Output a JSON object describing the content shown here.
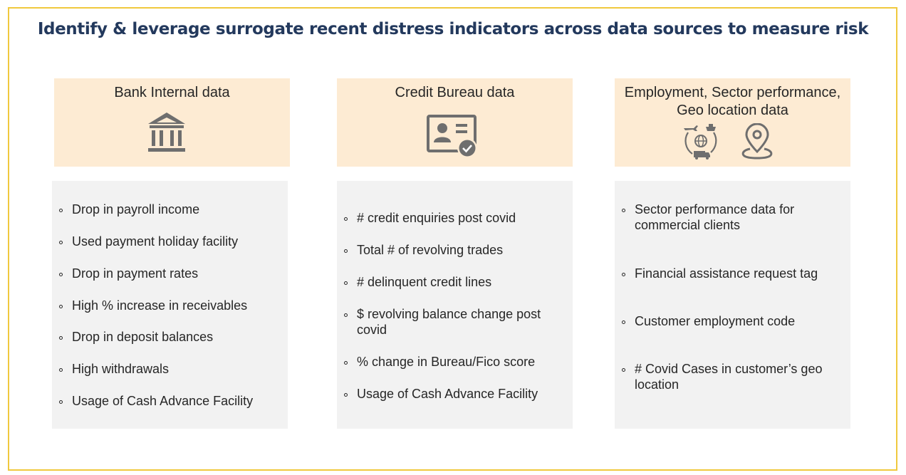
{
  "title": "Identify & leverage surrogate recent distress indicators across data sources to measure risk",
  "columns": [
    {
      "heading": "Bank Internal data",
      "icon": "bank-icon",
      "items": [
        "Drop in payroll income",
        "Used payment holiday facility",
        "Drop in payment rates",
        "High % increase in receivables",
        "Drop in deposit balances",
        "High withdrawals",
        "Usage of Cash Advance Facility"
      ]
    },
    {
      "heading": "Credit Bureau data",
      "icon": "id-card-verified-icon",
      "items": [
        "# credit enquiries post covid",
        "Total # of revolving trades",
        "# delinquent credit lines",
        "$ revolving balance change post covid",
        "% change in Bureau/Fico score",
        "Usage of Cash Advance Facility"
      ]
    },
    {
      "heading": "Employment, Sector performance, Geo location data",
      "icons": [
        "global-logistics-icon",
        "location-pin-icon"
      ],
      "items": [
        "Sector performance data for commercial clients",
        "Financial assistance request tag",
        "Customer employment code",
        " # Covid Cases in customer’s geo location"
      ]
    }
  ],
  "colors": {
    "title": "#23395d",
    "frame": "#f0c93e",
    "header_bg": "#fdebd3",
    "body_bg": "#f2f2f2",
    "icon": "#6e6e6e"
  }
}
